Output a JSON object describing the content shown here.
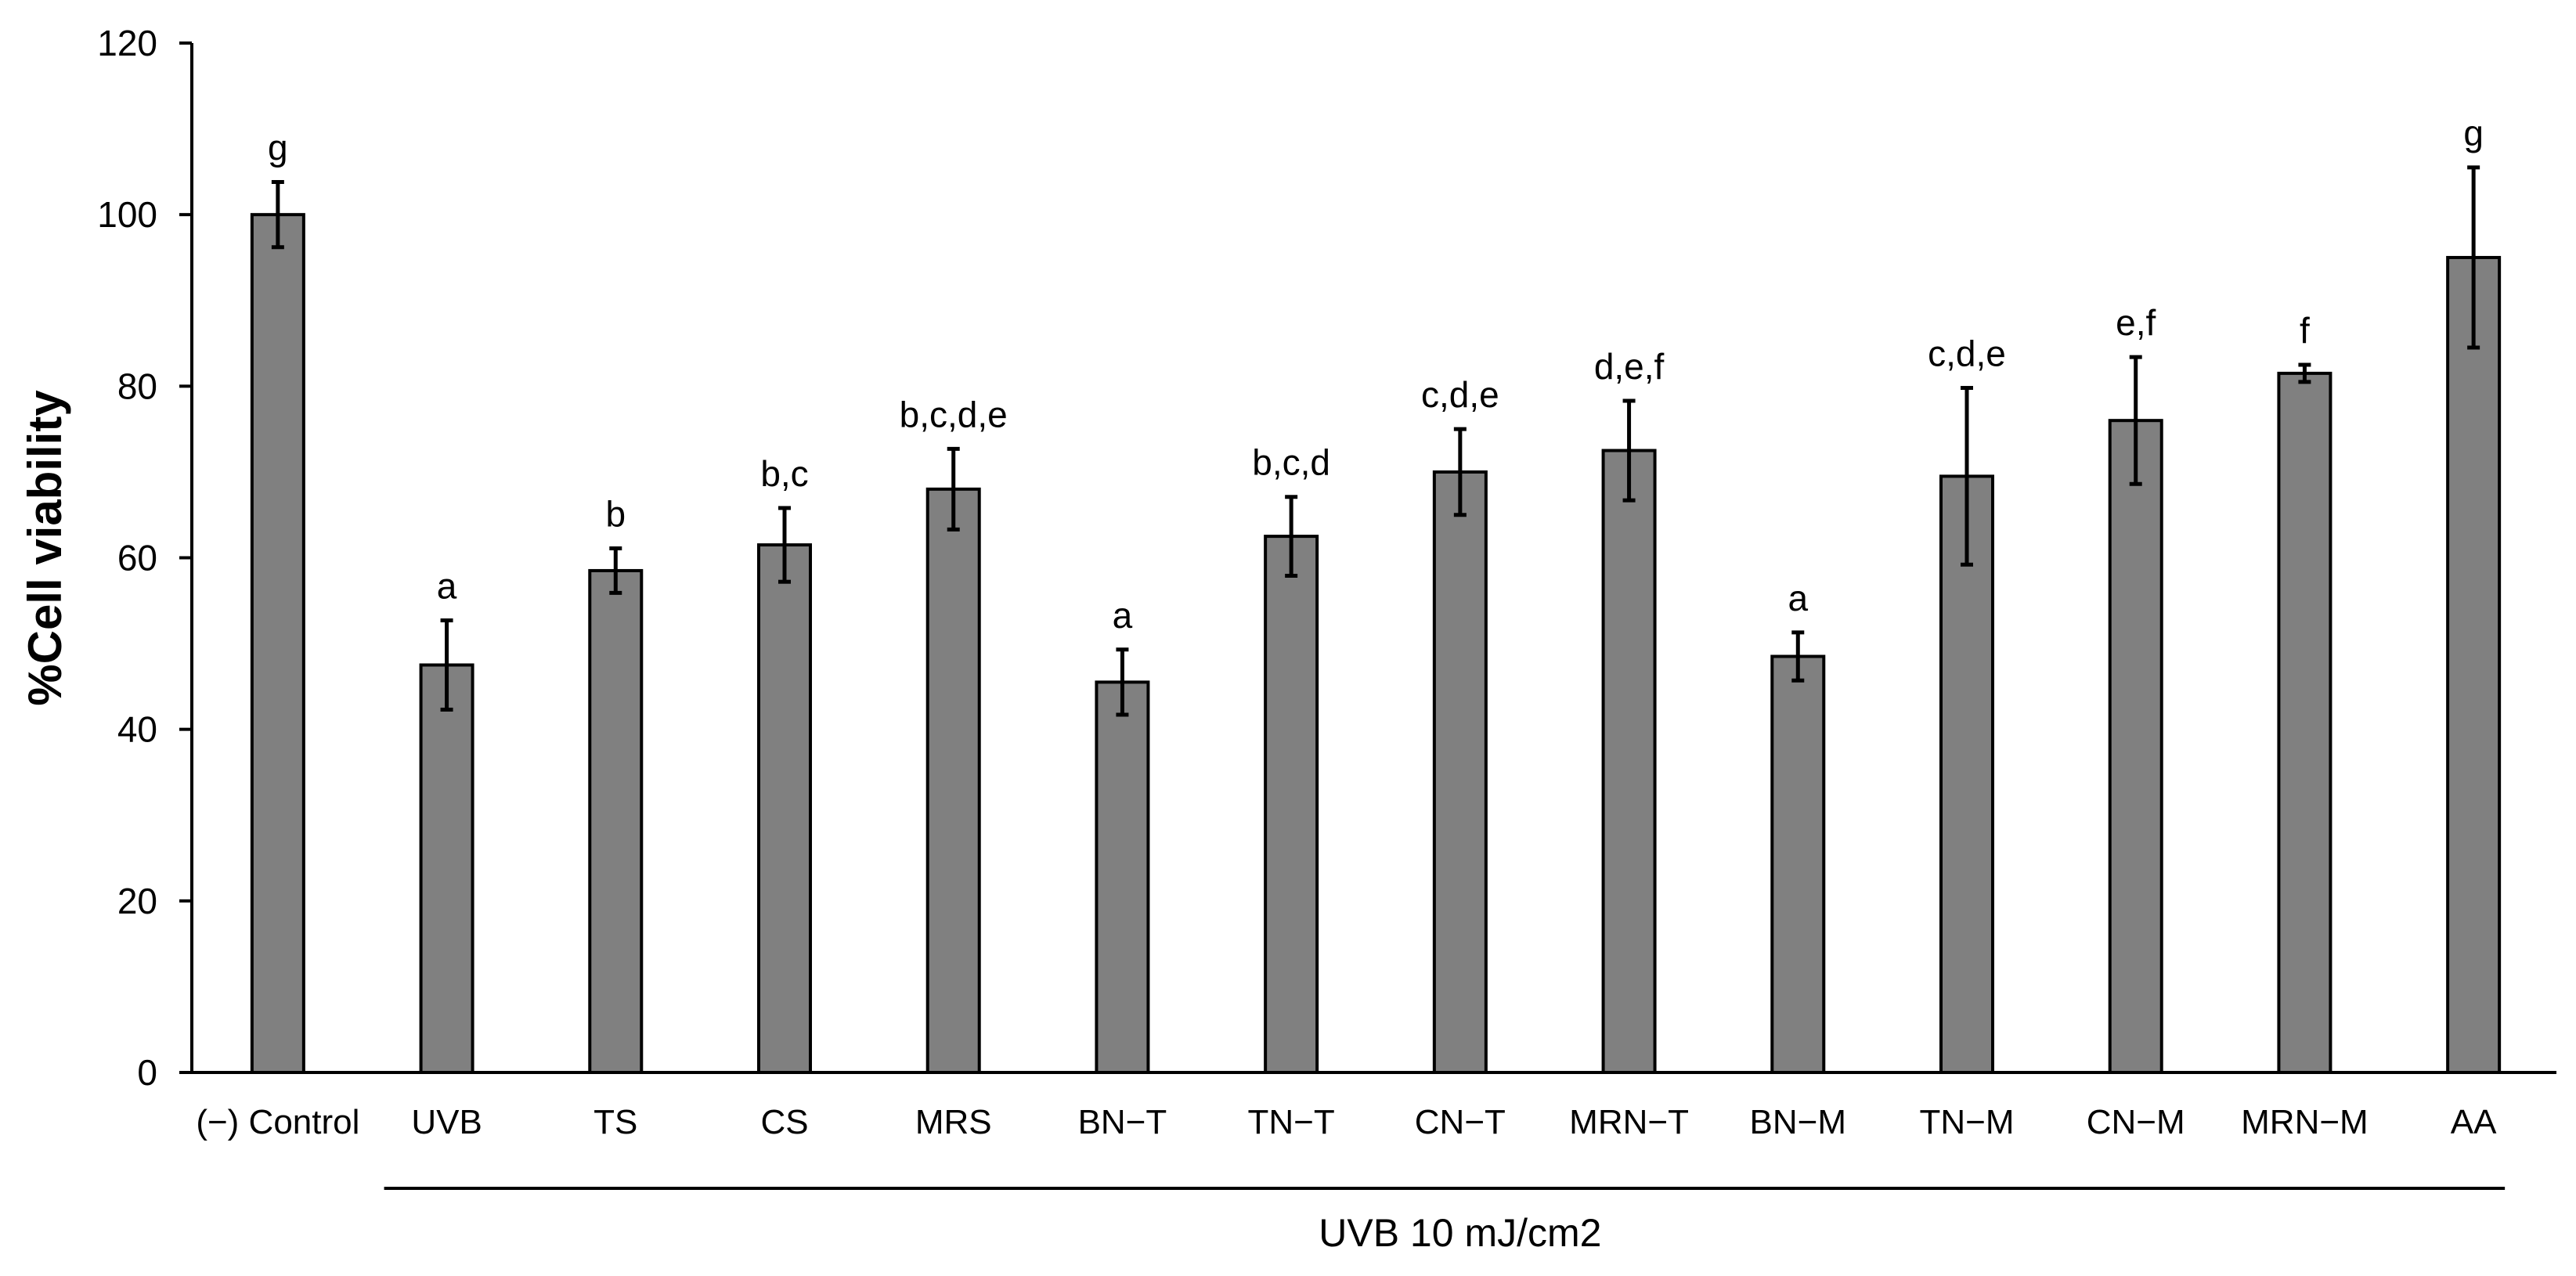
{
  "chart_data": {
    "type": "bar",
    "title": "",
    "xlabel": "",
    "ylabel": "%Cell viability",
    "ylim": [
      0,
      120
    ],
    "yticks": [
      0,
      20,
      40,
      60,
      80,
      100,
      120
    ],
    "grid": false,
    "categories": [
      "(−) Control",
      "UVB",
      "TS",
      "CS",
      "MRS",
      "BN−T",
      "TN−T",
      "CN−T",
      "MRN−T",
      "BN−M",
      "TN−M",
      "CN−M",
      "MRN−M",
      "AA"
    ],
    "values": [
      100,
      47.5,
      58.5,
      61.5,
      68,
      45.5,
      62.5,
      70,
      72.5,
      48.5,
      69.5,
      76,
      81.5,
      95
    ],
    "errors": [
      3.8,
      5.2,
      2.6,
      4.3,
      4.7,
      3.8,
      4.6,
      5.0,
      5.8,
      2.8,
      10.3,
      7.4,
      1.0,
      10.5
    ],
    "significance": [
      "g",
      "a",
      "b",
      "b,c",
      "b,c,d,e",
      "a",
      "b,c,d",
      "c,d,e",
      "d,e,f",
      "a",
      "c,d,e",
      "e,f",
      "f",
      "g"
    ],
    "bar_color": "#808080",
    "group_label": "UVB 10 mJ/cm2",
    "group_range": [
      "UVB",
      "AA"
    ]
  }
}
